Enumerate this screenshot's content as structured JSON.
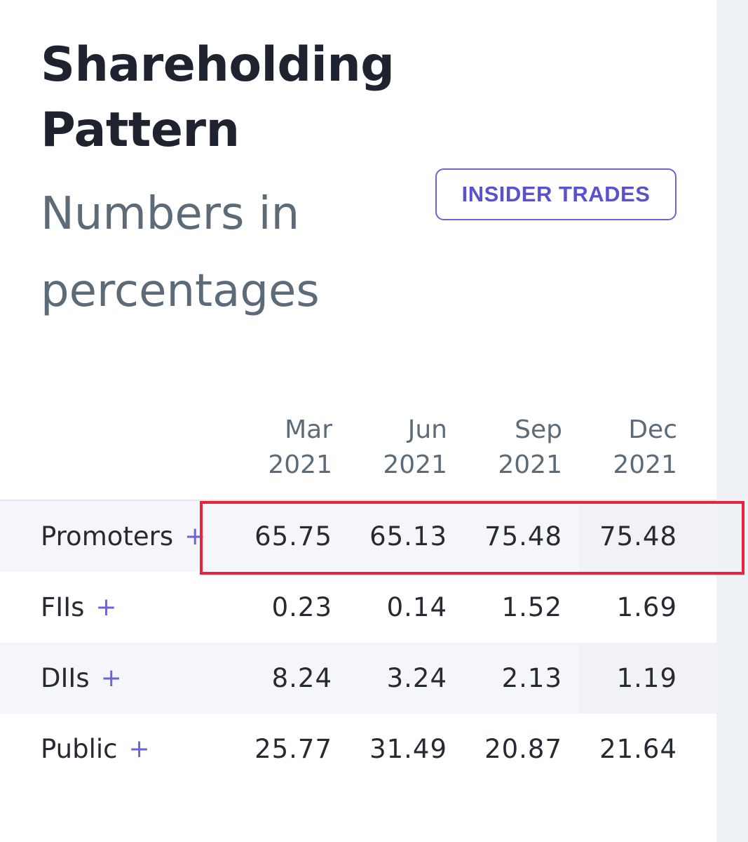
{
  "header": {
    "title": "Shareholding Pattern",
    "subtitle": "Numbers in percentages",
    "insider_trades_label": "INSIDER TRADES"
  },
  "table": {
    "columns": [
      {
        "month": "Mar",
        "year": "2021"
      },
      {
        "month": "Jun",
        "year": "2021"
      },
      {
        "month": "Sep",
        "year": "2021"
      },
      {
        "month": "Dec",
        "year": "2021"
      }
    ],
    "rows": [
      {
        "label": "Promoters",
        "expand": "+",
        "values": [
          "65.75",
          "65.13",
          "75.48",
          "75.48"
        ]
      },
      {
        "label": "FIIs",
        "expand": "+",
        "values": [
          "0.23",
          "0.14",
          "1.52",
          "1.69"
        ]
      },
      {
        "label": "DIIs",
        "expand": "+",
        "values": [
          "8.24",
          "3.24",
          "2.13",
          "1.19"
        ]
      },
      {
        "label": "Public",
        "expand": "+",
        "values": [
          "25.77",
          "31.49",
          "20.87",
          "21.64"
        ]
      }
    ]
  },
  "colors": {
    "accent": "#6c63d8",
    "highlight_border": "#e8243c",
    "row_shade": "#f5f6f9"
  }
}
